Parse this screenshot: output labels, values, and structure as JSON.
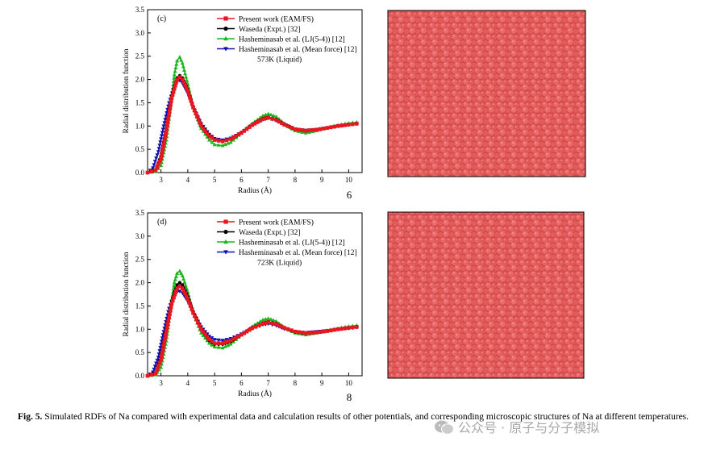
{
  "caption": {
    "label": "Fig. 5.",
    "text": " Simulated RDFs of Na compared with experimental data and calculation results of other potentials, and corresponding microscopic structures of Na at different temperatures."
  },
  "watermark": "公众号 · 原子与分子模拟",
  "colors": {
    "present": "#e8171f",
    "waseda": "#000000",
    "lj": "#1cb51c",
    "meanforce": "#1010b0",
    "atom": "#e05a5a"
  },
  "panels": [
    {
      "tag": "(c)",
      "condition": "573K (Liquid)",
      "side_number": "6",
      "ylabel": "Radial distribution function",
      "xlabel": "Radius (Å)",
      "xticks": [
        "3",
        "4",
        "5",
        "6",
        "7",
        "8",
        "9",
        "10"
      ],
      "yticks": [
        "0.0",
        "0.5",
        "1.0",
        "1.5",
        "2.0",
        "2.5",
        "3.0",
        "3.5"
      ],
      "legend": [
        "Present work (EAM/FS)",
        "Waseda (Expt.) [32]",
        "Hasheminasab et al. (LJ(5-4)) [12]",
        "Hasheminasab et al. (Mean force) [12]"
      ]
    },
    {
      "tag": "(d)",
      "condition": "723K (Liquid)",
      "side_number": "8",
      "ylabel": "Radial distribution function",
      "xlabel": "Radius (Å)",
      "xticks": [
        "3",
        "4",
        "5",
        "6",
        "7",
        "8",
        "9",
        "10"
      ],
      "yticks": [
        "0.0",
        "0.5",
        "1.0",
        "1.5",
        "2.0",
        "2.5",
        "3.0",
        "3.5"
      ],
      "legend": [
        "Present work (EAM/FS)",
        "Waseda (Expt.) [32]",
        "Hasheminasab et al. (LJ(5-4)) [12]",
        "Hasheminasab et al. (Mean force) [12]"
      ]
    }
  ],
  "chart_data": [
    {
      "type": "line",
      "xlabel": "Radius (Å)",
      "ylabel": "Radial distribution function",
      "xlim": [
        2.5,
        10.5
      ],
      "ylim": [
        0,
        3.5
      ],
      "series": [
        {
          "name": "Present work (EAM/FS)",
          "x": [
            2.5,
            2.8,
            3.0,
            3.2,
            3.4,
            3.6,
            3.7,
            3.8,
            4.0,
            4.2,
            4.5,
            4.8,
            5.0,
            5.3,
            5.6,
            6.0,
            6.4,
            6.8,
            7.0,
            7.3,
            7.6,
            8.0,
            8.4,
            8.8,
            9.2,
            9.6,
            10.0,
            10.3
          ],
          "y": [
            0,
            0.05,
            0.3,
            0.9,
            1.6,
            2.0,
            2.05,
            2.0,
            1.75,
            1.4,
            1.0,
            0.78,
            0.7,
            0.67,
            0.72,
            0.85,
            1.02,
            1.15,
            1.18,
            1.13,
            1.03,
            0.93,
            0.9,
            0.92,
            0.96,
            1.0,
            1.03,
            1.05
          ]
        },
        {
          "name": "Waseda (Expt.) [32]",
          "x": [
            2.5,
            2.8,
            3.0,
            3.2,
            3.4,
            3.6,
            3.7,
            3.8,
            4.0,
            4.2,
            4.5,
            4.8,
            5.0,
            5.3,
            5.6,
            6.0,
            6.4,
            6.8,
            7.0,
            7.3,
            7.6,
            8.0,
            8.4,
            8.8,
            9.2,
            9.6,
            10.0,
            10.3
          ],
          "y": [
            0,
            0.06,
            0.35,
            0.95,
            1.65,
            2.03,
            2.08,
            2.03,
            1.78,
            1.42,
            1.02,
            0.8,
            0.71,
            0.68,
            0.72,
            0.86,
            1.03,
            1.16,
            1.19,
            1.14,
            1.04,
            0.93,
            0.9,
            0.92,
            0.96,
            1.0,
            1.03,
            1.05
          ]
        },
        {
          "name": "Hasheminasab et al. (LJ(5-4)) [12]",
          "x": [
            2.5,
            2.8,
            3.0,
            3.2,
            3.4,
            3.5,
            3.6,
            3.7,
            3.8,
            4.0,
            4.2,
            4.5,
            4.8,
            5.0,
            5.3,
            5.6,
            6.0,
            6.4,
            6.8,
            7.0,
            7.3,
            7.6,
            8.0,
            8.4,
            8.8,
            9.2,
            9.6,
            10.0,
            10.3
          ],
          "y": [
            0,
            0.02,
            0.15,
            0.7,
            1.6,
            2.1,
            2.4,
            2.48,
            2.35,
            1.9,
            1.4,
            0.95,
            0.7,
            0.6,
            0.58,
            0.65,
            0.85,
            1.05,
            1.22,
            1.26,
            1.2,
            1.05,
            0.9,
            0.85,
            0.9,
            0.96,
            1.02,
            1.06,
            1.08
          ]
        },
        {
          "name": "Hasheminasab et al. (Mean force) [12]",
          "x": [
            2.5,
            2.7,
            2.9,
            3.1,
            3.3,
            3.5,
            3.6,
            3.7,
            3.8,
            4.0,
            4.2,
            4.5,
            4.8,
            5.0,
            5.3,
            5.6,
            6.0,
            6.4,
            6.8,
            7.0,
            7.3,
            7.6,
            8.0,
            8.4,
            8.8,
            9.2,
            9.6,
            10.0,
            10.3
          ],
          "y": [
            0,
            0.1,
            0.45,
            1.0,
            1.5,
            1.85,
            1.95,
            1.98,
            1.92,
            1.7,
            1.4,
            1.05,
            0.82,
            0.73,
            0.7,
            0.74,
            0.86,
            1.02,
            1.14,
            1.17,
            1.12,
            1.03,
            0.94,
            0.91,
            0.93,
            0.96,
            1.0,
            1.03,
            1.05
          ]
        }
      ]
    },
    {
      "type": "line",
      "xlabel": "Radius (Å)",
      "ylabel": "Radial distribution function",
      "xlim": [
        2.5,
        10.5
      ],
      "ylim": [
        0,
        3.5
      ],
      "series": [
        {
          "name": "Present work (EAM/FS)",
          "x": [
            2.5,
            2.8,
            3.0,
            3.2,
            3.4,
            3.6,
            3.7,
            3.8,
            4.0,
            4.2,
            4.5,
            4.8,
            5.0,
            5.3,
            5.6,
            6.0,
            6.4,
            6.8,
            7.0,
            7.3,
            7.6,
            8.0,
            8.4,
            8.8,
            9.2,
            9.6,
            10.0,
            10.3
          ],
          "y": [
            0,
            0.05,
            0.35,
            0.95,
            1.55,
            1.88,
            1.92,
            1.88,
            1.65,
            1.35,
            1.0,
            0.78,
            0.7,
            0.7,
            0.76,
            0.88,
            1.02,
            1.12,
            1.15,
            1.11,
            1.03,
            0.95,
            0.92,
            0.93,
            0.96,
            1.0,
            1.03,
            1.05
          ]
        },
        {
          "name": "Waseda (Expt.) [32]",
          "x": [
            2.5,
            2.8,
            3.0,
            3.2,
            3.4,
            3.6,
            3.7,
            3.8,
            4.0,
            4.2,
            4.5,
            4.8,
            5.0,
            5.3,
            5.6,
            6.0,
            6.4,
            6.8,
            7.0,
            7.3,
            7.6,
            8.0,
            8.4,
            8.8,
            9.2,
            9.6,
            10.0,
            10.3
          ],
          "y": [
            0,
            0.06,
            0.4,
            1.0,
            1.6,
            1.95,
            2.0,
            1.95,
            1.7,
            1.38,
            1.0,
            0.76,
            0.68,
            0.68,
            0.74,
            0.88,
            1.03,
            1.13,
            1.16,
            1.12,
            1.03,
            0.94,
            0.91,
            0.93,
            0.96,
            1.0,
            1.03,
            1.05
          ]
        },
        {
          "name": "Hasheminasab et al. (LJ(5-4)) [12]",
          "x": [
            2.5,
            2.8,
            3.0,
            3.2,
            3.4,
            3.5,
            3.6,
            3.7,
            3.8,
            4.0,
            4.2,
            4.5,
            4.8,
            5.0,
            5.3,
            5.6,
            6.0,
            6.4,
            6.8,
            7.0,
            7.3,
            7.6,
            8.0,
            8.4,
            8.8,
            9.2,
            9.6,
            10.0,
            10.3
          ],
          "y": [
            0,
            0.02,
            0.18,
            0.75,
            1.6,
            2.0,
            2.2,
            2.25,
            2.15,
            1.8,
            1.35,
            0.92,
            0.7,
            0.62,
            0.6,
            0.68,
            0.88,
            1.06,
            1.2,
            1.23,
            1.17,
            1.04,
            0.92,
            0.88,
            0.92,
            0.97,
            1.02,
            1.06,
            1.08
          ]
        },
        {
          "name": "Hasheminasab et al. (Mean force) [12]",
          "x": [
            2.5,
            2.7,
            2.9,
            3.1,
            3.3,
            3.5,
            3.6,
            3.7,
            3.8,
            4.0,
            4.2,
            4.5,
            4.8,
            5.0,
            5.3,
            5.6,
            6.0,
            6.4,
            6.8,
            7.0,
            7.3,
            7.6,
            8.0,
            8.4,
            8.8,
            9.2,
            9.6,
            10.0,
            10.3
          ],
          "y": [
            0,
            0.08,
            0.4,
            0.95,
            1.45,
            1.75,
            1.8,
            1.82,
            1.78,
            1.6,
            1.35,
            1.05,
            0.85,
            0.78,
            0.76,
            0.8,
            0.9,
            1.02,
            1.1,
            1.12,
            1.08,
            1.01,
            0.95,
            0.93,
            0.95,
            0.97,
            1.0,
            1.02,
            1.04
          ]
        }
      ]
    }
  ]
}
